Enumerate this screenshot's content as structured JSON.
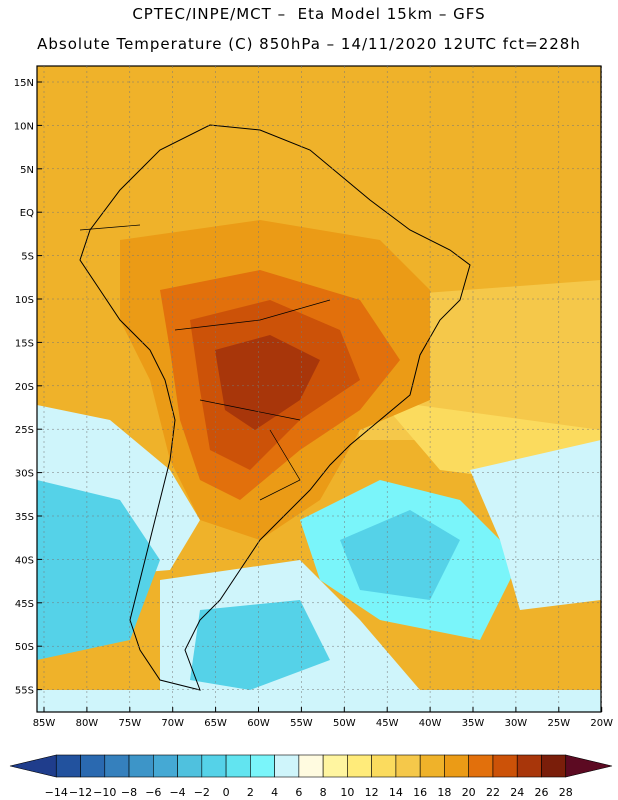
{
  "header": {
    "line1": "CPTEC/INPE/MCT –  Eta Model 15km – GFS",
    "line2": "Absolute Temperature (C) 850hPa – 14/11/2020 12UTC fct=228h"
  },
  "map": {
    "lat_labels": [
      "15N",
      "10N",
      "5N",
      "EQ",
      "5S",
      "10S",
      "15S",
      "20S",
      "25S",
      "30S",
      "35S",
      "40S",
      "45S",
      "50S",
      "55S"
    ],
    "lon_labels": [
      "85W",
      "80W",
      "75W",
      "70W",
      "65W",
      "60W",
      "55W",
      "50W",
      "45W",
      "40W",
      "35W",
      "30W",
      "25W",
      "20W"
    ]
  },
  "colorbar": {
    "labels": [
      "-14",
      "-12",
      "-10",
      "-8",
      "-6",
      "-4",
      "-2",
      "0",
      "2",
      "4",
      "6",
      "8",
      "10",
      "12",
      "14",
      "16",
      "18",
      "20",
      "22",
      "24",
      "26",
      "28"
    ],
    "colors": [
      "#1f3d8c",
      "#22529e",
      "#2a69b0",
      "#3580bd",
      "#3d95c8",
      "#45a9d4",
      "#4fc1de",
      "#55d2e8",
      "#62e4f0",
      "#7af5fa",
      "#cff5fb",
      "#fffbe0",
      "#fff5a0",
      "#ffeb7a",
      "#fbdb5e",
      "#f5c84a",
      "#efb22a",
      "#eb9b16",
      "#e2700c",
      "#cc5208",
      "#a8360a",
      "#7a1e0a",
      "#5c0a22"
    ]
  }
}
